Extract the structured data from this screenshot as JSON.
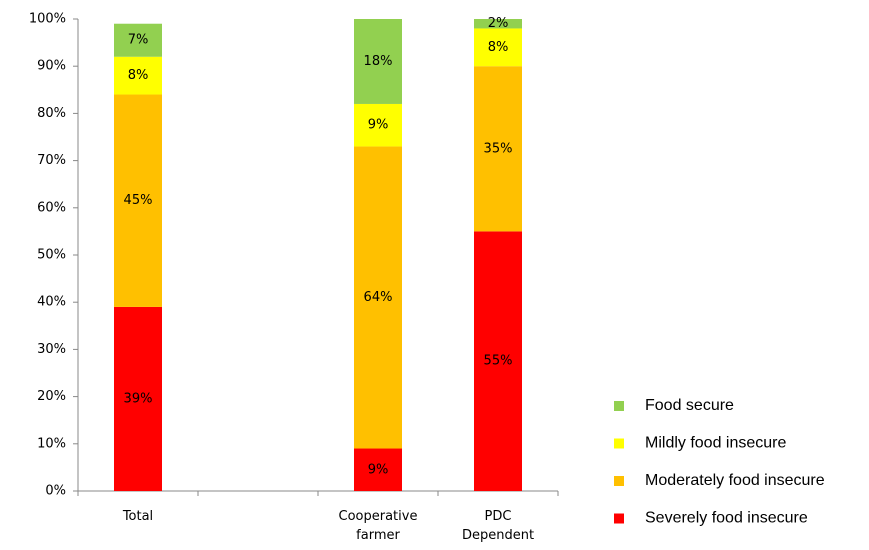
{
  "chart_data": {
    "type": "stacked-bar",
    "categories": [
      "Total",
      null,
      "Cooperative farmer",
      "PDC Dependent"
    ],
    "series": [
      {
        "name": "Severely food insecure",
        "color": "#ff0000",
        "values": [
          39,
          null,
          9,
          55
        ],
        "value_labels": [
          "39%",
          null,
          "9%",
          "55%"
        ]
      },
      {
        "name": "Moderately food insecure",
        "color": "#ffc000",
        "values": [
          45,
          null,
          64,
          35
        ],
        "value_labels": [
          "45%",
          null,
          "64%",
          "35%"
        ]
      },
      {
        "name": "Mildly food insecure",
        "color": "#ffff00",
        "values": [
          8,
          null,
          9,
          8
        ],
        "value_labels": [
          "8%",
          null,
          "9%",
          "8%"
        ]
      },
      {
        "name": "Food secure",
        "color": "#92d050",
        "values": [
          7,
          null,
          18,
          2
        ],
        "value_labels": [
          "7%",
          null,
          "18%",
          "2%"
        ]
      }
    ],
    "ylim": [
      0,
      100
    ],
    "yticks": [
      {
        "value": 0,
        "label": "0%"
      },
      {
        "value": 10,
        "label": "10%"
      },
      {
        "value": 20,
        "label": "20%"
      },
      {
        "value": 30,
        "label": "30%"
      },
      {
        "value": 40,
        "label": "40%"
      },
      {
        "value": 50,
        "label": "50%"
      },
      {
        "value": 60,
        "label": "60%"
      },
      {
        "value": 70,
        "label": "70%"
      },
      {
        "value": 80,
        "label": "80%"
      },
      {
        "value": 90,
        "label": "90%"
      },
      {
        "value": 100,
        "label": "100%"
      }
    ],
    "grid": false,
    "legend": "right"
  }
}
